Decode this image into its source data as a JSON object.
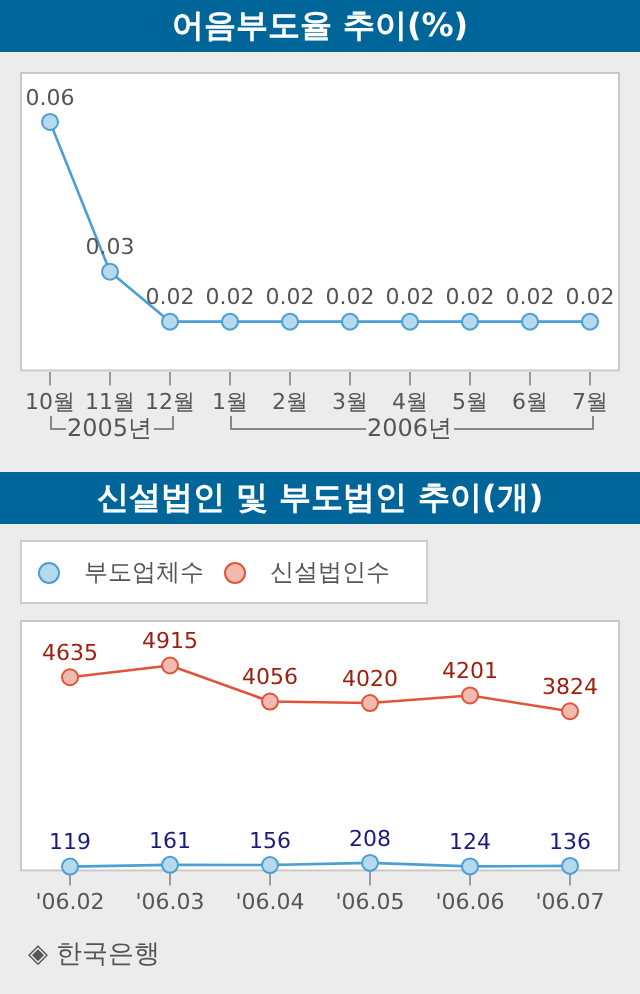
{
  "chart_data": [
    {
      "type": "line",
      "title": "어음부도율 추이(%)",
      "categories": [
        "10월",
        "11월",
        "12월",
        "1월",
        "2월",
        "3월",
        "4월",
        "5월",
        "6월",
        "7월"
      ],
      "values": [
        0.06,
        0.03,
        0.02,
        0.02,
        0.02,
        0.02,
        0.02,
        0.02,
        0.02,
        0.02
      ],
      "color": "#4a9fd4",
      "marker": "circle",
      "data_labels": true,
      "tick_labels": "x",
      "legend": false,
      "annotations": [
        "2005년",
        "2006년"
      ]
    },
    {
      "type": "line",
      "title": "신설법인 및 부도법인 추이(개)",
      "categories": [
        "'06.02",
        "'06.03",
        "'06.04",
        "'06.05",
        "'06.06",
        "'06.07"
      ],
      "series": [
        {
          "name": "부도업체수",
          "color": "#4a9fd4",
          "values": [
            119,
            161,
            156,
            208,
            124,
            136
          ]
        },
        {
          "name": "신설법인수",
          "color": "#e0553a",
          "values": [
            4635,
            4915,
            4056,
            4020,
            4201,
            3824
          ]
        }
      ],
      "marker": "circle",
      "data_labels": true,
      "tick_labels": "x",
      "legend": "top left",
      "annotations": [
        "◈ 한국은행"
      ]
    }
  ]
}
